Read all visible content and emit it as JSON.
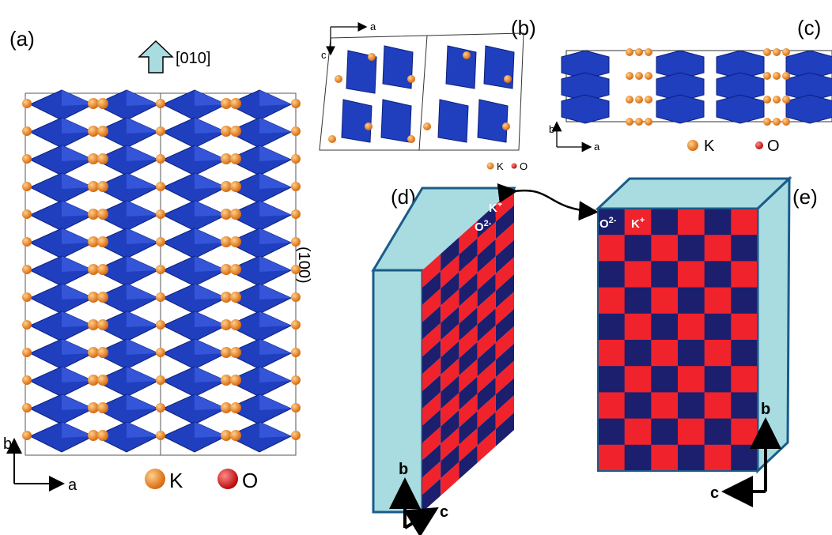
{
  "panels": {
    "a": {
      "label": "(a)",
      "direction_label": "[010]",
      "plane_label": "(100)",
      "axis_v": "b",
      "axis_h": "a",
      "legend_k": "K",
      "legend_o": "O"
    },
    "b": {
      "label": "(b)",
      "axis_h": "a",
      "axis_v": "c",
      "legend_k": "K",
      "legend_o": "O"
    },
    "c": {
      "label": "(c)",
      "axis_v": "b",
      "axis_h": "a",
      "legend_k": "K",
      "legend_o": "O"
    },
    "d": {
      "label": "(d)",
      "ion_o": "O",
      "ion_o_charge": "2-",
      "ion_k": "K",
      "ion_k_charge": "+",
      "axis_v": "b",
      "axis_h": "c"
    },
    "e": {
      "label": "(e)",
      "ion_o": "O",
      "ion_o_charge": "2-",
      "ion_k": "K",
      "ion_k_charge": "+",
      "axis_v": "b",
      "axis_h": "c"
    }
  },
  "colors": {
    "polyhedra": "#1f3fbf",
    "polyhedra_dark": "#0d1f7a",
    "potassium": "#e8801c",
    "oxygen": "#e01818",
    "slab_face": "#a8dce0",
    "slab_edge": "#1a5c8a",
    "checker_red": "#f0222c",
    "checker_blue": "#1b1f6e"
  }
}
